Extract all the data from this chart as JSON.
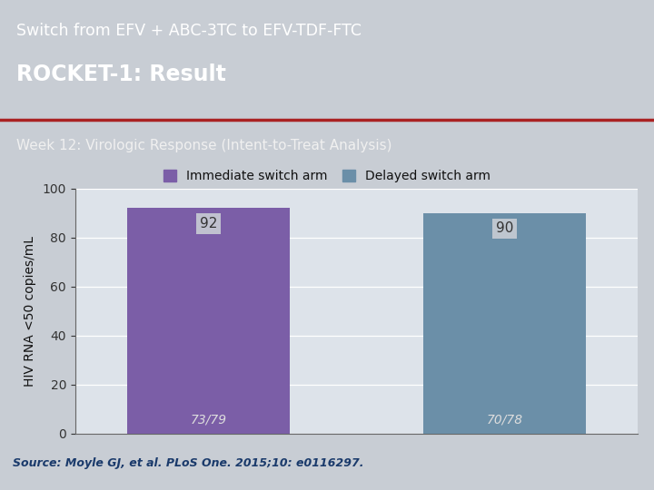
{
  "title_line1": "Switch from EFV + ABC-3TC to EFV-TDF-FTC",
  "title_line2": "ROCKET-1: Result",
  "subtitle": "Week 12: Virologic Response (Intent-to-Treat Analysis)",
  "legend_labels": [
    "Immediate switch arm",
    "Delayed switch arm"
  ],
  "bar_colors": [
    "#7b5ea7",
    "#6b8fa8"
  ],
  "bar_values": [
    92,
    90
  ],
  "bar_labels_top": [
    "92",
    "90"
  ],
  "bar_labels_bottom": [
    "73/79",
    "70/78"
  ],
  "ylabel": "HIV RNA <50 copies/mL",
  "ylim": [
    0,
    100
  ],
  "yticks": [
    0,
    20,
    40,
    60,
    80,
    100
  ],
  "source_text": "Source: Moyle GJ, et al. PLoS One. 2015;10: e0116297.",
  "header_bg_color": "#1e3f6e",
  "subheader_bg_color": "#808080",
  "plot_bg_color": "#dde3ea",
  "fig_bg_color": "#c8cdd4",
  "title_color": "#ffffff",
  "subtitle_color": "#f0f0f0",
  "source_color": "#1a3a6b",
  "red_line_color": "#aa2222",
  "label_box_color": "#c8cdd4"
}
